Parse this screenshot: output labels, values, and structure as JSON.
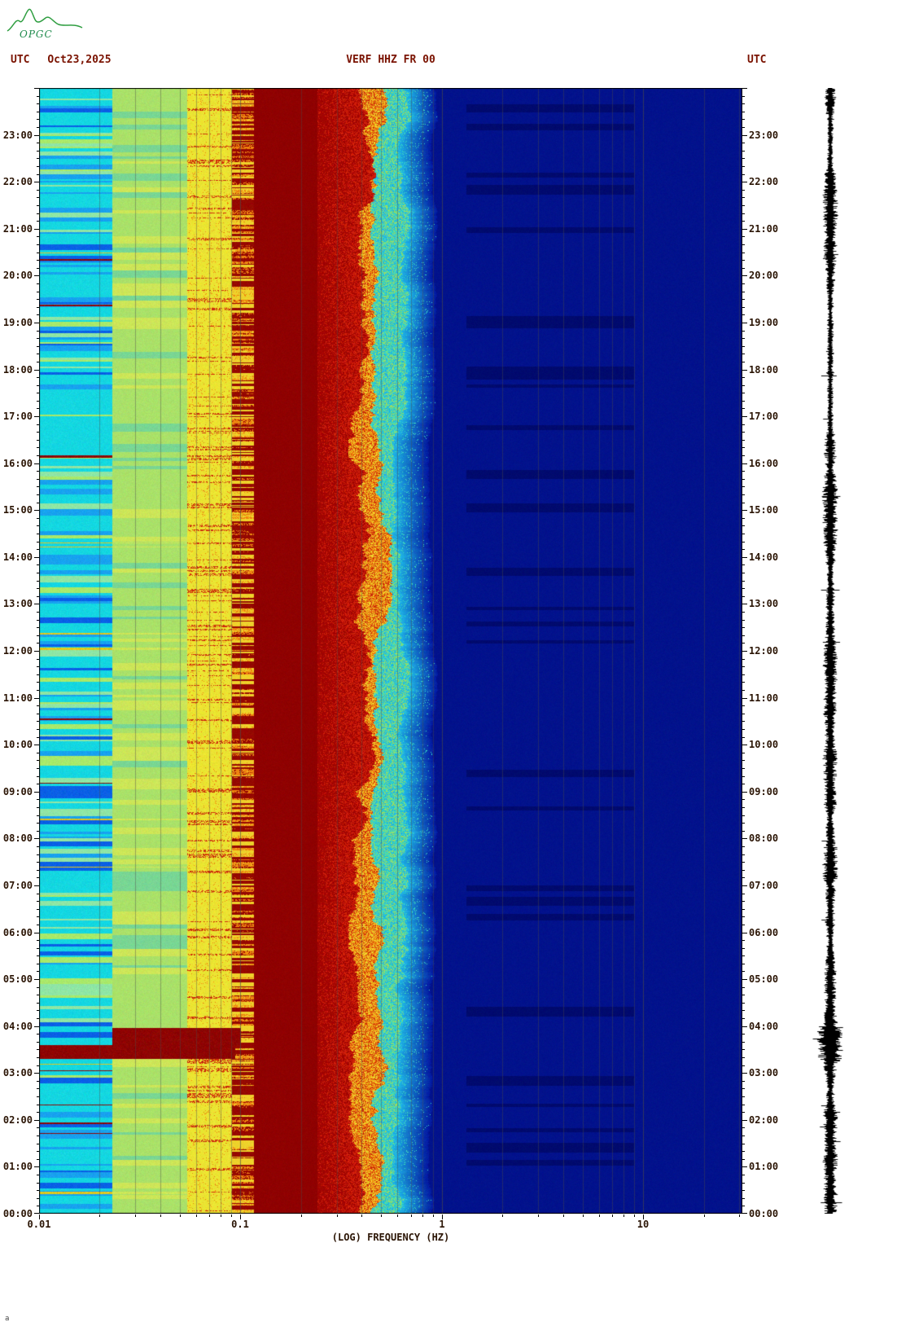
{
  "header": {
    "logo_text": "OPGC",
    "utc_label_left": "UTC",
    "date": "Oct23,2025",
    "title": "VERF HHZ FR 00",
    "utc_label_right": "UTC"
  },
  "footer": {
    "corner_mark": "a"
  },
  "chart_data": {
    "type": "heatmap",
    "subtype": "seismic spectrogram (24 h, frequency vs UTC time) with side seismogram trace",
    "title": "VERF HHZ FR 00",
    "station": "VERF",
    "channel": "HHZ",
    "network": "FR",
    "location_code": "00",
    "date_utc": "Oct23,2025",
    "time_axis": {
      "unit": "UTC",
      "direction": "00:00 at bottom to 24:00 at top",
      "start": "00:00",
      "end": "24:00",
      "tick_labels_top_to_bottom": [
        "23:00",
        "22:00",
        "21:00",
        "20:00",
        "19:00",
        "18:00",
        "17:00",
        "16:00",
        "15:00",
        "14:00",
        "13:00",
        "12:00",
        "11:00",
        "10:00",
        "09:00",
        "08:00",
        "07:00",
        "06:00",
        "05:00",
        "04:00",
        "03:00",
        "02:00",
        "01:00",
        "00:00"
      ],
      "minor_tick_minutes": 10
    },
    "freq_axis": {
      "label": "(LOG) FREQUENCY (HZ)",
      "scale": "log10",
      "min_hz": 0.01,
      "max_hz": 31,
      "tick_labels": [
        "0.01",
        "0.1",
        "1",
        "10"
      ],
      "tick_values_hz": [
        0.01,
        0.1,
        1,
        10
      ],
      "gridlines_hz": [
        0.02,
        0.03,
        0.04,
        0.05,
        0.06,
        0.07,
        0.08,
        0.09,
        0.1,
        0.2,
        0.3,
        0.4,
        0.5,
        0.6,
        0.7,
        0.8,
        0.9,
        1,
        2,
        3,
        4,
        5,
        6,
        7,
        8,
        9,
        10,
        20,
        30
      ]
    },
    "colormap": "jet-like: dark blue - cyan - green - yellow - red - dark red (high power at low frequency)",
    "frequency_bands": [
      {
        "range_hz": [
          0.01,
          0.023
        ],
        "appearance": "cyan with horizontal blue/green banding",
        "base_color": "#14d7e1"
      },
      {
        "range_hz": [
          0.023,
          0.054
        ],
        "appearance": "pale yellow-green, lightly banded",
        "base_color": "#aae169"
      },
      {
        "range_hz": [
          0.054,
          0.09
        ],
        "appearance": "yellow with scattered red streaks",
        "base_color": "#ebe432"
      },
      {
        "range_hz": [
          0.09,
          0.116
        ],
        "appearance": "dashed dark-red / orange vertical stripe band",
        "base_color": "#960800"
      },
      {
        "range_hz": [
          0.116,
          0.24
        ],
        "appearance": "solid dark red (microseism peak)",
        "base_color": "#8f0000"
      },
      {
        "range_hz": [
          0.24,
          0.4
        ],
        "appearance": "dark red with bright red speckle",
        "base_color": "#a30500"
      },
      {
        "range_hz": [
          0.4,
          0.5
        ],
        "appearance": "jagged orange-yellow transition",
        "base_color": "#ee8410"
      },
      {
        "range_hz": [
          0.5,
          0.63
        ],
        "appearance": "jagged yellow-green / cyan transition",
        "base_color": "#8fd77d"
      },
      {
        "range_hz": [
          0.63,
          0.9
        ],
        "appearance": "cyan fading into blue",
        "base_color": "#18a6dc"
      },
      {
        "range_hz": [
          0.9,
          31
        ],
        "appearance": "uniform dark navy with faint mottling",
        "base_color": "#02128c"
      }
    ],
    "events": [
      {
        "time_utc": "03:18-03:36",
        "freq_range_hz": [
          0.01,
          0.09
        ],
        "description": "strong low-frequency burst, dark red across all low bands",
        "t0": 3.3,
        "t1": 3.6,
        "logf0": -2.0,
        "logf1": -1.03,
        "color": "#8e0300"
      },
      {
        "time_utc": "03:36-03:58",
        "freq_range_hz": [
          0.023,
          0.1
        ],
        "description": "burst continues above 0.023 Hz",
        "t0": 3.6,
        "t1": 3.97,
        "logf0": -1.64,
        "logf1": -1.0,
        "color": "#8e0300"
      }
    ],
    "right_trace": {
      "description": "vertical broadband seismogram drawn along the right edge, aligned with the time axis",
      "color": "#000000"
    },
    "palette": {
      "stripe_blue": "#0a60e6",
      "stripe_lightblue": "#18a2ef",
      "stripe_palegreen": "#8fe6a5",
      "stripe_green": "#a9e96a",
      "band_green_dark": "#79d694",
      "band_green_light": "#cde658",
      "red_streak": "#cd2d0a",
      "orange": "#ee8410",
      "yellow_bright": "#eed22b",
      "dark_red": "#960800",
      "bright_red": "#d2200a",
      "cyan_speckle": "#3cd7be",
      "green_speckle": "#96dc64",
      "blue_speckle": "#1eb4e6",
      "blue_mid": "#0218a0",
      "navy_dark": "#000a6e",
      "event_red": "#8e0300",
      "event_yellow": "#e1c81e",
      "grid": "#4a4a4a",
      "trace": "#000000"
    }
  }
}
